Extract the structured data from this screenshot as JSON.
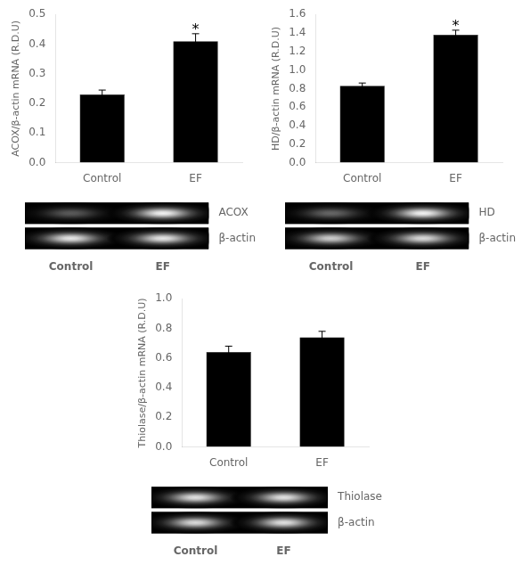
{
  "chart_data": [
    {
      "type": "bar",
      "categories": [
        "Control",
        "EF"
      ],
      "values": [
        0.23,
        0.41
      ],
      "errors": [
        0.015,
        0.025
      ],
      "ylabel": "ACOX/β-actin mRNA (R.D.U)",
      "ylim": [
        0.0,
        0.5
      ],
      "yticks": [
        {
          "value": 0,
          "label": "0.0"
        },
        0.1,
        0.2,
        0.3,
        0.4,
        0.5
      ],
      "color": "#000000",
      "grid": false,
      "annotations": [
        {
          "text": "*",
          "category": "EF"
        }
      ]
    },
    {
      "type": "gel",
      "categories": [
        "Control",
        "EF"
      ],
      "series": [
        {
          "name": "ACOX",
          "values": [
            0.35,
            0.95
          ]
        },
        {
          "name": "β-actin",
          "values": [
            0.9,
            0.9
          ]
        }
      ]
    },
    {
      "type": "bar",
      "categories": [
        "Control",
        "EF"
      ],
      "values": [
        0.83,
        1.38
      ],
      "errors": [
        0.03,
        0.05
      ],
      "ylabel": "HD/β-actin mRNA (R.D.U)",
      "ylim": [
        0.0,
        1.6
      ],
      "yticks": [
        {
          "value": 0,
          "label": "0.0"
        },
        0.2,
        0.4,
        0.6,
        0.8,
        {
          "value": 1,
          "label": "1.0"
        },
        1.2,
        1.4,
        1.6
      ],
      "color": "#000000",
      "grid": false,
      "annotations": [
        {
          "text": "*",
          "category": "EF"
        }
      ]
    },
    {
      "type": "gel",
      "categories": [
        "Control",
        "EF"
      ],
      "series": [
        {
          "name": "HD",
          "values": [
            0.4,
            0.95
          ]
        },
        {
          "name": "β-actin",
          "values": [
            0.8,
            0.85
          ]
        }
      ]
    },
    {
      "type": "bar",
      "categories": [
        "Control",
        "EF"
      ],
      "values": [
        0.64,
        0.74
      ],
      "errors": [
        0.04,
        0.04
      ],
      "ylabel": "Thiolase/β-actin mRNA (R.D.U)",
      "ylim": [
        0.0,
        1.0
      ],
      "yticks": [
        {
          "value": 0,
          "label": "0.0"
        },
        0.2,
        0.4,
        0.6,
        0.8,
        {
          "value": 1,
          "label": "1.0"
        }
      ],
      "color": "#000000",
      "grid": false,
      "annotations": []
    },
    {
      "type": "gel",
      "categories": [
        "Control",
        "EF"
      ],
      "series": [
        {
          "name": "Thiolase",
          "values": [
            0.88,
            0.88
          ]
        },
        {
          "name": "β-actin",
          "values": [
            0.85,
            0.88
          ]
        }
      ]
    }
  ]
}
